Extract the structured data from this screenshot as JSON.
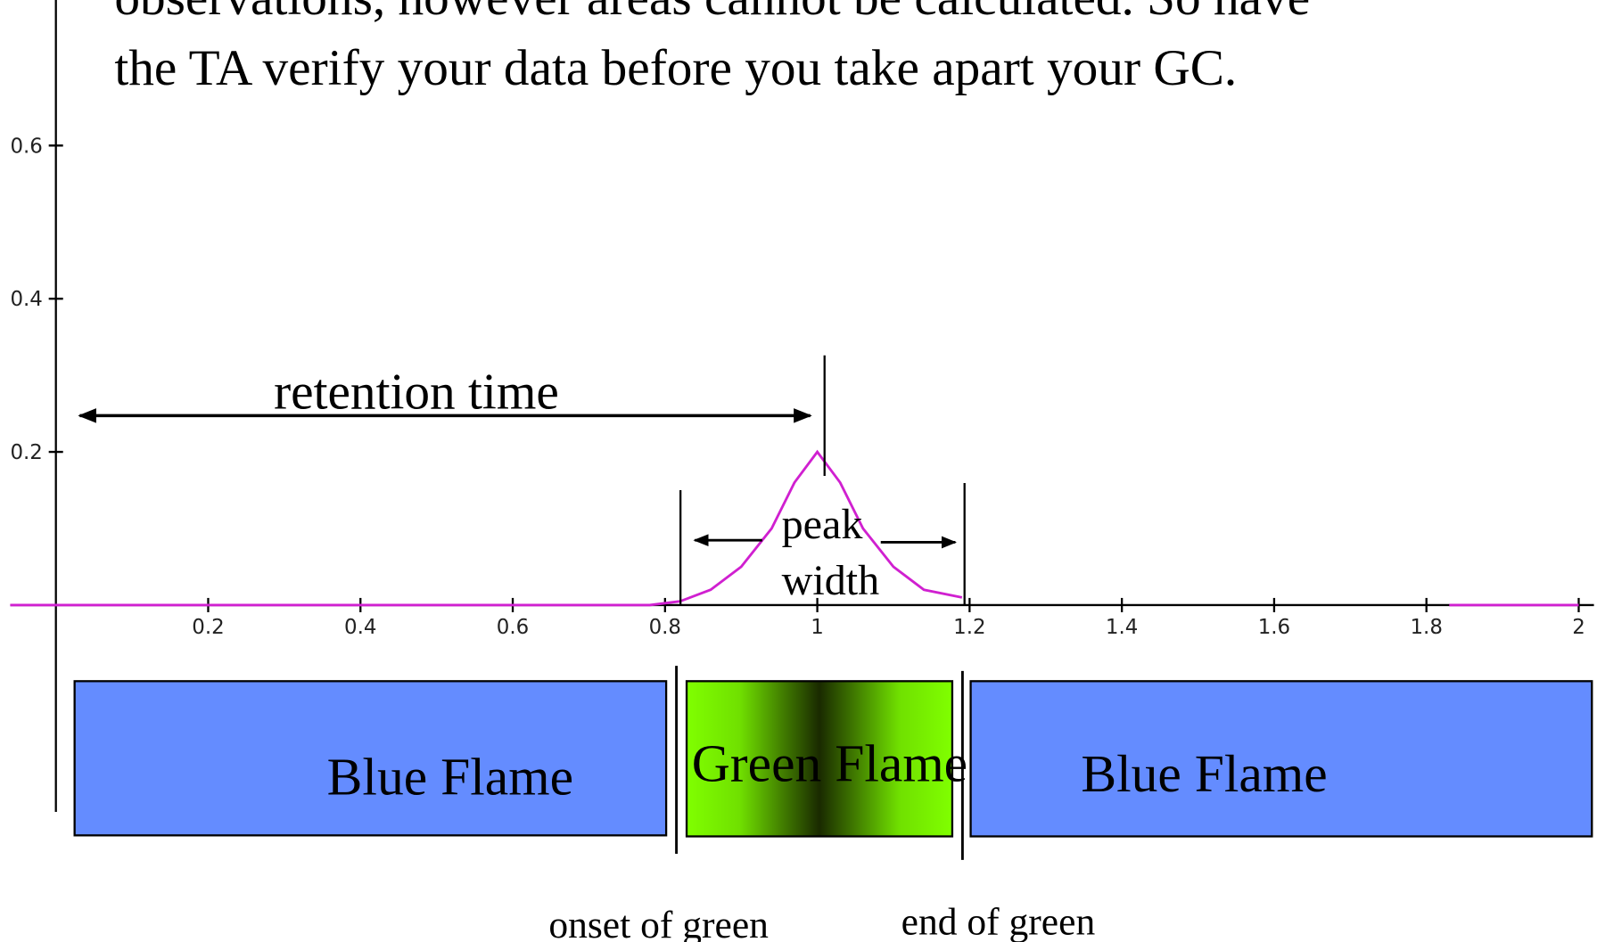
{
  "text_lines": [
    "observations, however areas cannot be calculated.  So have",
    "the TA verify your data before you take apart your GC."
  ],
  "chart_data": {
    "type": "line",
    "x": [
      -0.06,
      0.78,
      0.82,
      0.86,
      0.9,
      0.94,
      0.97,
      1.0,
      1.03,
      1.06,
      1.1,
      1.14,
      1.19,
      1.5,
      1.83,
      2.0
    ],
    "series": [
      {
        "name": "signal",
        "color": "#d020d0",
        "values": [
          0,
          0,
          0.005,
          0.02,
          0.05,
          0.1,
          0.16,
          0.2,
          0.16,
          0.1,
          0.05,
          0.02,
          0.01,
          null,
          0,
          0
        ]
      }
    ],
    "xlim": [
      -0.06,
      2.02
    ],
    "ylim": [
      -0.27,
      0.79
    ],
    "xticks": [
      0.2,
      0.4,
      0.6,
      0.8,
      1,
      1.2,
      1.4,
      1.6,
      1.8,
      2
    ],
    "yticks": [
      0.2,
      0.4,
      0.6
    ],
    "annotations": {
      "retention": "retention time",
      "peak": "peak",
      "width": "width",
      "blue_left": "Blue Flame",
      "green": "Green Flame",
      "blue_right": "Blue Flame",
      "onset": "onset of green",
      "end": "end of green"
    }
  }
}
